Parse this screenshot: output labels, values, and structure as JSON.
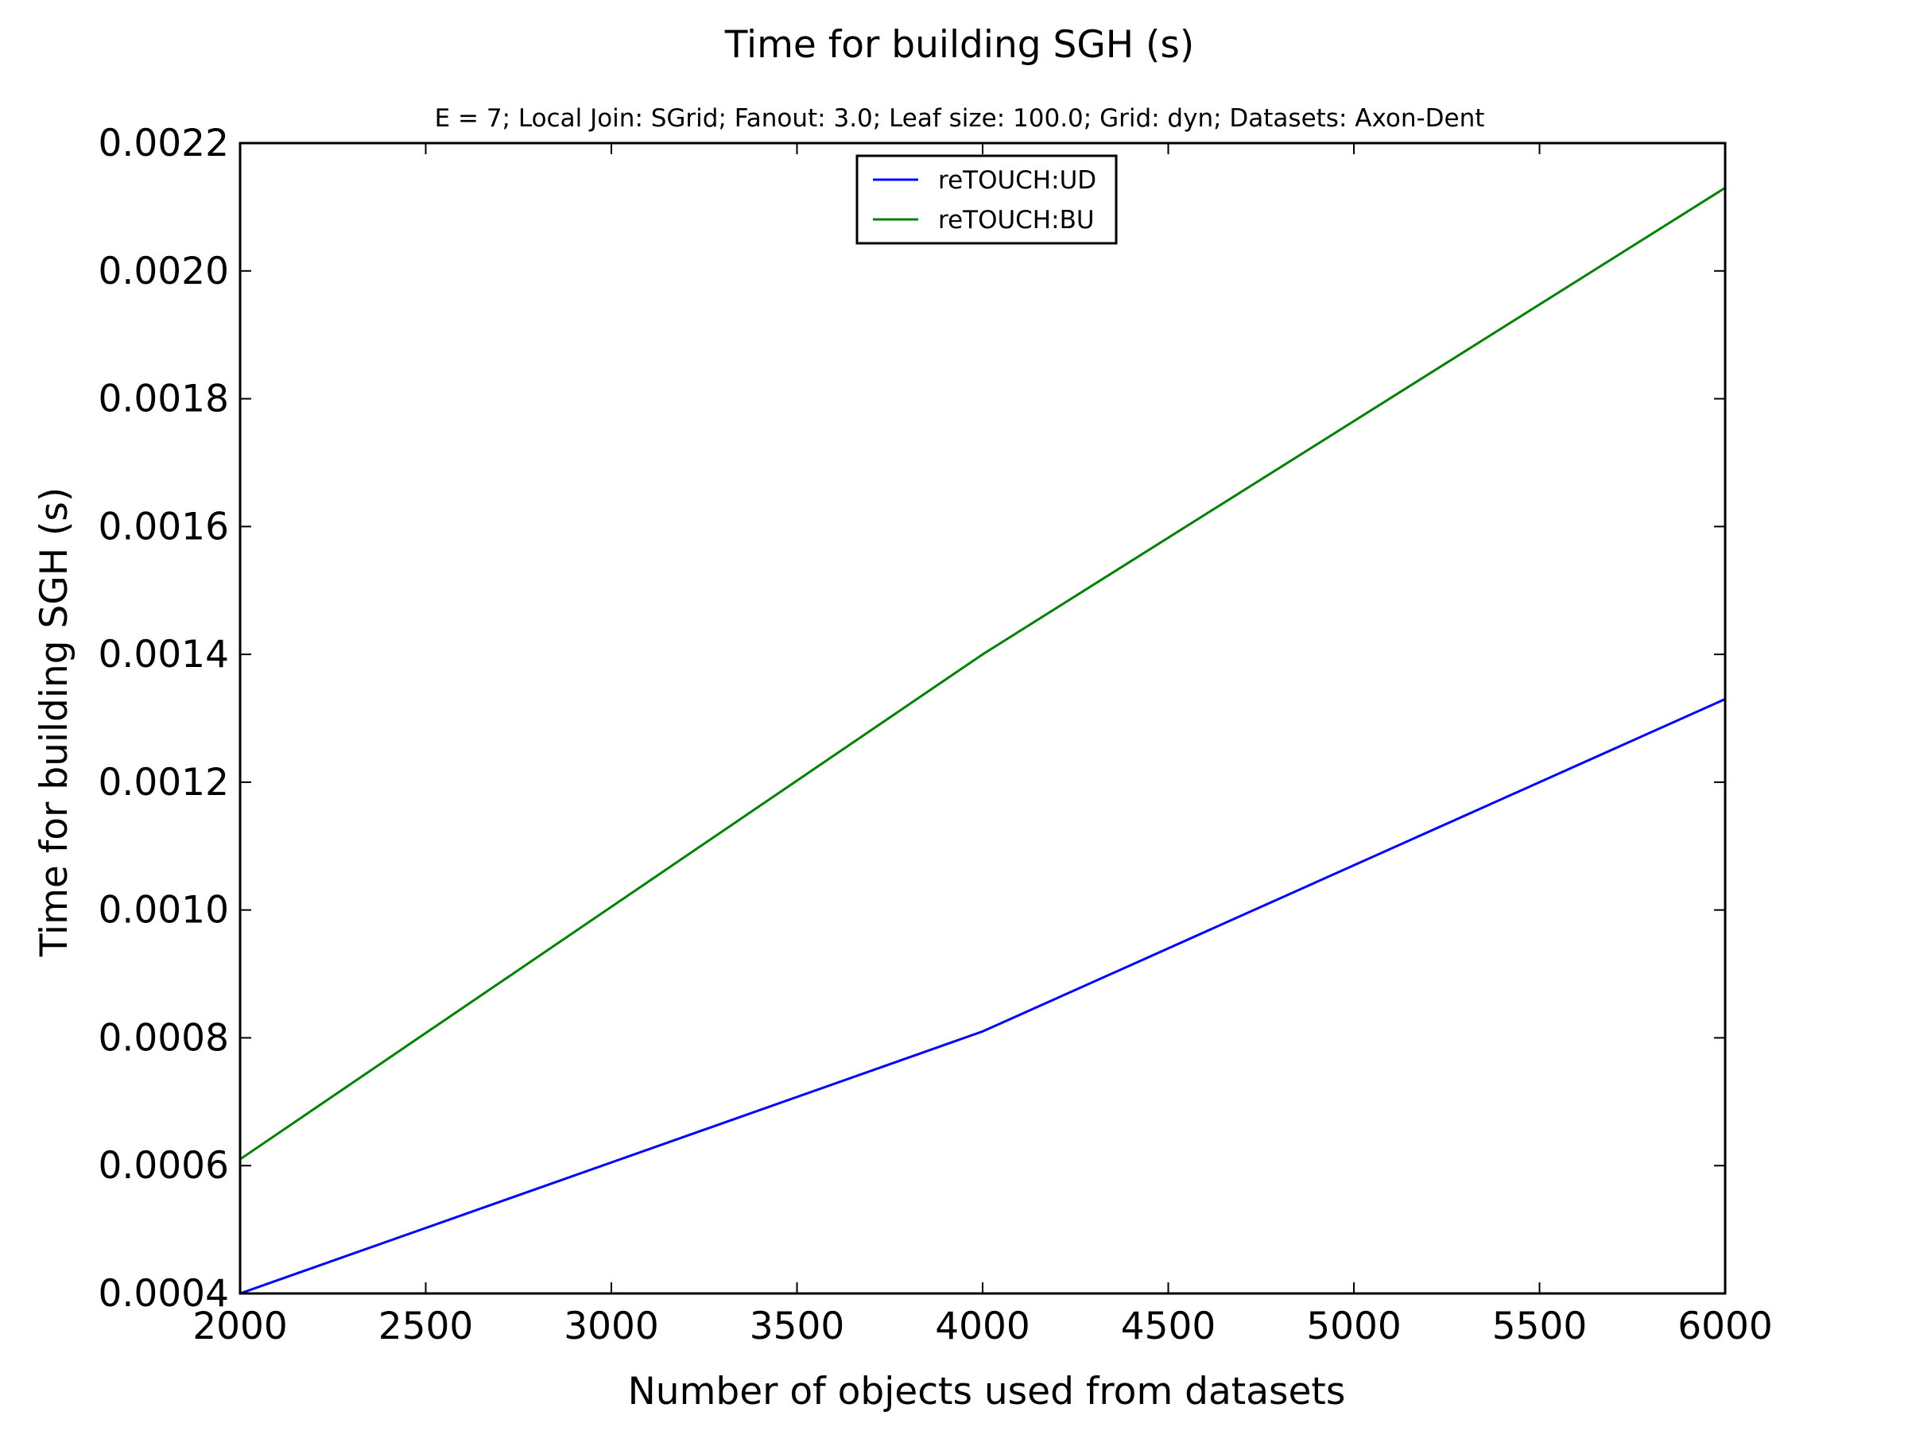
{
  "chart_data": {
    "type": "line",
    "title": "Time for building SGH (s)",
    "subtitle": "E = 7; Local Join: SGrid; Fanout: 3.0; Leaf size: 100.0; Grid: dyn; Datasets: Axon-Dent",
    "xlabel": "Number of objects used from datasets",
    "ylabel": "Time for building SGH (s)",
    "xlim": [
      2000,
      6000
    ],
    "ylim": [
      0.0004,
      0.0022
    ],
    "x_ticks": [
      2000,
      2500,
      3000,
      3500,
      4000,
      4500,
      5000,
      5500,
      6000
    ],
    "x_tick_labels": [
      "2000",
      "2500",
      "3000",
      "3500",
      "4000",
      "4500",
      "5000",
      "5500",
      "6000"
    ],
    "y_ticks": [
      0.0004,
      0.0006,
      0.0008,
      0.001,
      0.0012,
      0.0014,
      0.0016,
      0.0018,
      0.002,
      0.0022
    ],
    "y_tick_labels": [
      "0.0004",
      "0.0006",
      "0.0008",
      "0.0010",
      "0.0012",
      "0.0014",
      "0.0016",
      "0.0018",
      "0.0020",
      "0.0022"
    ],
    "grid": false,
    "legend_position": "top-center",
    "x": [
      2000,
      4000,
      6000
    ],
    "series": [
      {
        "name": "reTOUCH:UD",
        "color": "#0000ff",
        "values": [
          0.0004,
          0.00081,
          0.00133
        ]
      },
      {
        "name": "reTOUCH:BU",
        "color": "#008000",
        "values": [
          0.00061,
          0.0014,
          0.00213
        ]
      }
    ]
  }
}
